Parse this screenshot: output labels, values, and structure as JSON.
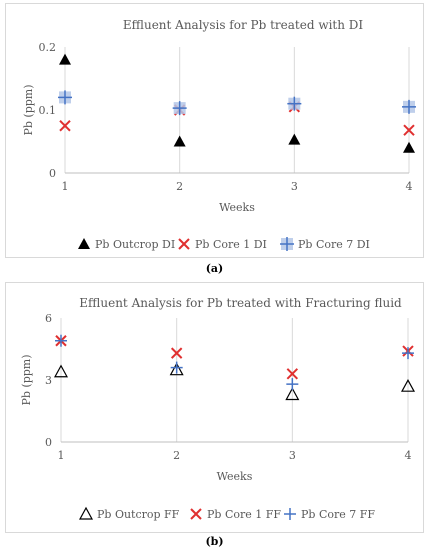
{
  "chart_data": [
    {
      "type": "scatter",
      "title": "Effluent Analysis for Pb treated with DI",
      "xlabel": "Weeks",
      "ylabel": "Pb (ppm)",
      "x_ticks": [
        "1",
        "2",
        "3",
        "4"
      ],
      "y_ticks": [
        "0",
        "0.1",
        "0.2"
      ],
      "xlim": [
        1,
        4
      ],
      "ylim": [
        0,
        0.2
      ],
      "grid": "vertical",
      "legend_position": "bottom",
      "x": [
        1,
        2,
        3,
        4
      ],
      "series": [
        {
          "name": "Pb Outcrop DI",
          "marker": "filled-triangle",
          "color": "#000000",
          "values": [
            0.18,
            0.05,
            0.053,
            0.04
          ]
        },
        {
          "name": "Pb Core 1 DI",
          "marker": "x",
          "color": "#e03030",
          "values": [
            0.075,
            0.1,
            0.105,
            0.068
          ]
        },
        {
          "name": "Pb Core 7 DI",
          "marker": "plus-square",
          "color": "#4472c4",
          "values": [
            0.12,
            0.103,
            0.11,
            0.105
          ]
        }
      ],
      "caption": "(a)"
    },
    {
      "type": "scatter",
      "title": "Effluent Analysis for Pb treated with Fracturing fluid",
      "xlabel": "Weeks",
      "ylabel": "Pb (ppm)",
      "x_ticks": [
        "1",
        "2",
        "3",
        "4"
      ],
      "y_ticks": [
        "0",
        "3",
        "6"
      ],
      "xlim": [
        1,
        4
      ],
      "ylim": [
        0,
        6
      ],
      "grid": "vertical",
      "legend_position": "bottom",
      "x": [
        1,
        2,
        3,
        4
      ],
      "series": [
        {
          "name": "Pb Outcrop FF",
          "marker": "open-triangle",
          "color": "#000000",
          "values": [
            3.4,
            3.5,
            2.3,
            2.7
          ]
        },
        {
          "name": "Pb Core 1 FF",
          "marker": "x",
          "color": "#e03030",
          "values": [
            4.9,
            4.3,
            3.3,
            4.4
          ]
        },
        {
          "name": "Pb Core 7 FF",
          "marker": "plus",
          "color": "#4472c4",
          "values": [
            4.9,
            3.6,
            2.8,
            4.3
          ]
        }
      ],
      "caption": "(b)"
    }
  ]
}
